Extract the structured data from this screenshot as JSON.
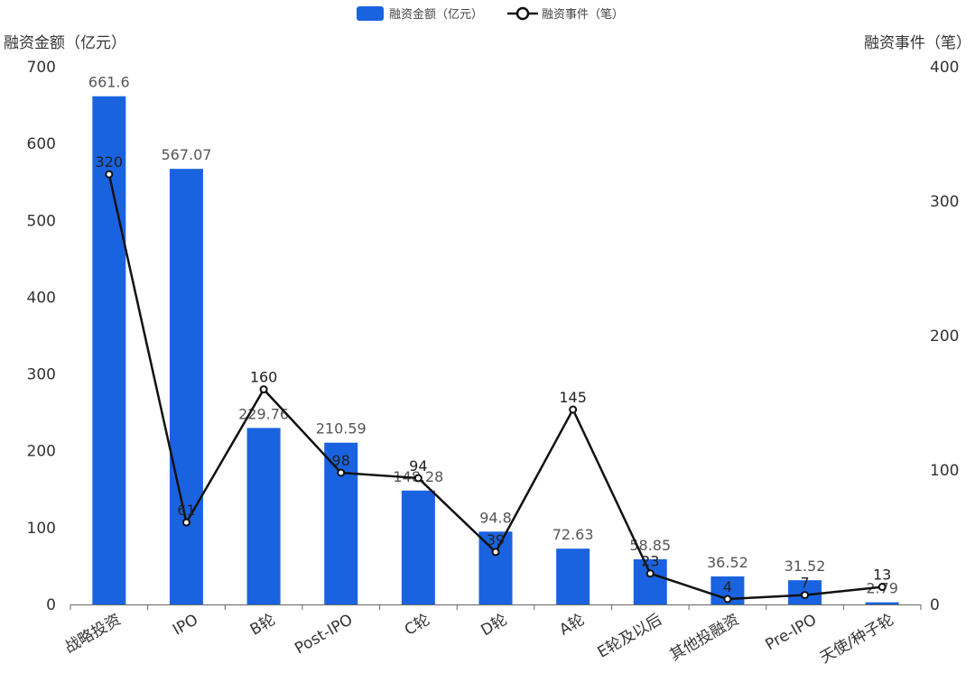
{
  "chart_data": {
    "type": "bar",
    "categories": [
      "战略投资",
      "IPO",
      "B轮",
      "Post-IPO",
      "C轮",
      "D轮",
      "A轮",
      "E轮及以后",
      "其他投融资",
      "Pre-IPO",
      "天使/种子轮"
    ],
    "series": [
      {
        "name": "融资金额（亿元）",
        "type": "bar",
        "axis": "left",
        "color": "#1a63e0",
        "values": [
          661.6,
          567.07,
          229.76,
          210.59,
          148.28,
          94.8,
          72.63,
          58.85,
          36.52,
          31.52,
          2.79
        ],
        "labels": [
          "661.6",
          "567.07",
          "229.76",
          "210.59",
          "148.28",
          "94.8",
          "72.63",
          "58.85",
          "36.52",
          "31.52",
          "2.79"
        ]
      },
      {
        "name": "融资事件（笔）",
        "type": "line",
        "axis": "right",
        "color": "#111111",
        "values": [
          320,
          61,
          160,
          98,
          94,
          39,
          145,
          23,
          4,
          7,
          13
        ],
        "labels": [
          "320",
          "61",
          "160",
          "98",
          "94",
          "39",
          "145",
          "23",
          "4",
          "7",
          "13"
        ]
      }
    ],
    "ylabel_left": "融资金额（亿元）",
    "ylabel_right": "融资事件（笔）",
    "ylim_left": [
      0,
      700
    ],
    "ylim_right": [
      0,
      400
    ],
    "yticks_left": [
      "0",
      "100",
      "200",
      "300",
      "400",
      "500",
      "600",
      "700"
    ],
    "yticks_right": [
      "0",
      "100",
      "200",
      "300",
      "400"
    ],
    "legend": "top-center",
    "grid": false
  }
}
